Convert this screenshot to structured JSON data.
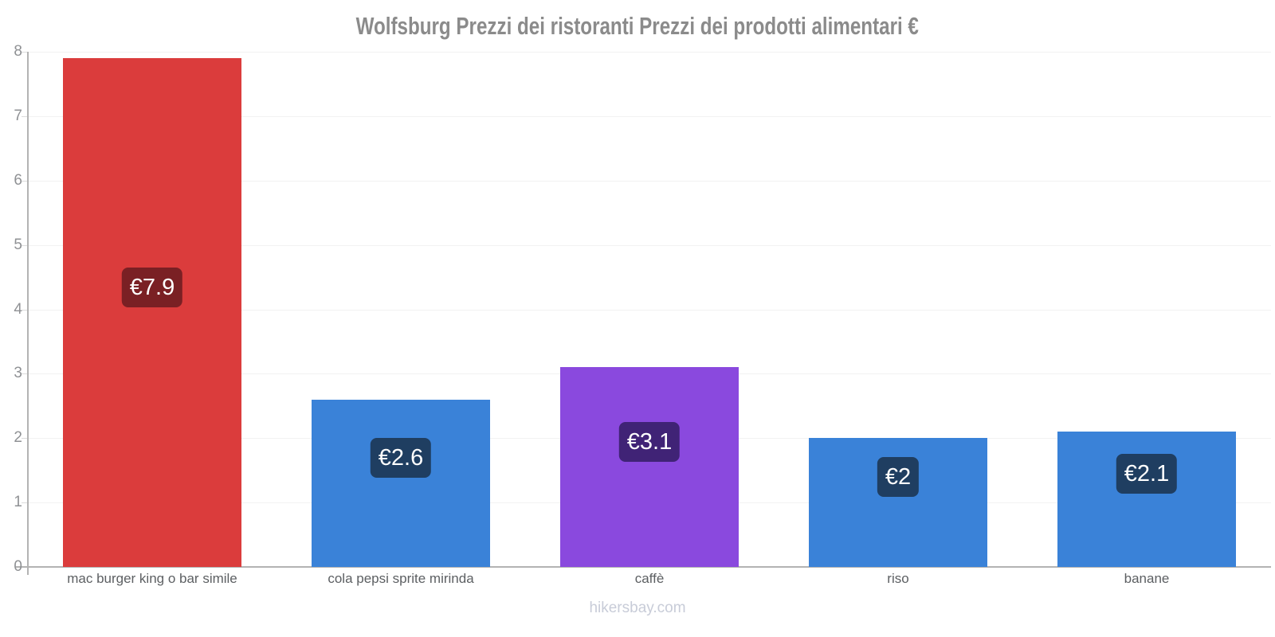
{
  "page": {
    "footer": "hikersbay.com"
  },
  "chart_data": {
    "type": "bar",
    "title": "Wolfsburg Prezzi dei ristoranti Prezzi dei prodotti alimentari €",
    "categories": [
      "mac burger king o bar simile",
      "cola pepsi sprite mirinda",
      "caffè",
      "riso",
      "banane"
    ],
    "values": [
      7.9,
      2.6,
      3.1,
      2,
      2.1
    ],
    "value_labels": [
      "€7.9",
      "€2.6",
      "€3.1",
      "€2",
      "€2.1"
    ],
    "currency": "€",
    "xlabel": "",
    "ylabel": "",
    "ylim": [
      0,
      8
    ],
    "yticks": [
      0,
      1,
      2,
      3,
      4,
      5,
      6,
      7,
      8
    ],
    "grid": true,
    "legend": false,
    "bar_colors": [
      "#db3c3c",
      "#3a82d8",
      "#8a49de",
      "#3a82d8",
      "#3a82d8"
    ],
    "value_label_bg": [
      "#7a2024",
      "#1f3e61",
      "#402376",
      "#1f3e61",
      "#1f3e61"
    ],
    "value_label_text_color": "#ffffff",
    "axis_color": "#b3b3b3",
    "grid_color": "#f2f2f2",
    "title_color": "#8b8b8b",
    "tick_label_color": "#8f9194",
    "category_label_color": "#5c5f62",
    "watermark_color": "#c8ccd8"
  }
}
